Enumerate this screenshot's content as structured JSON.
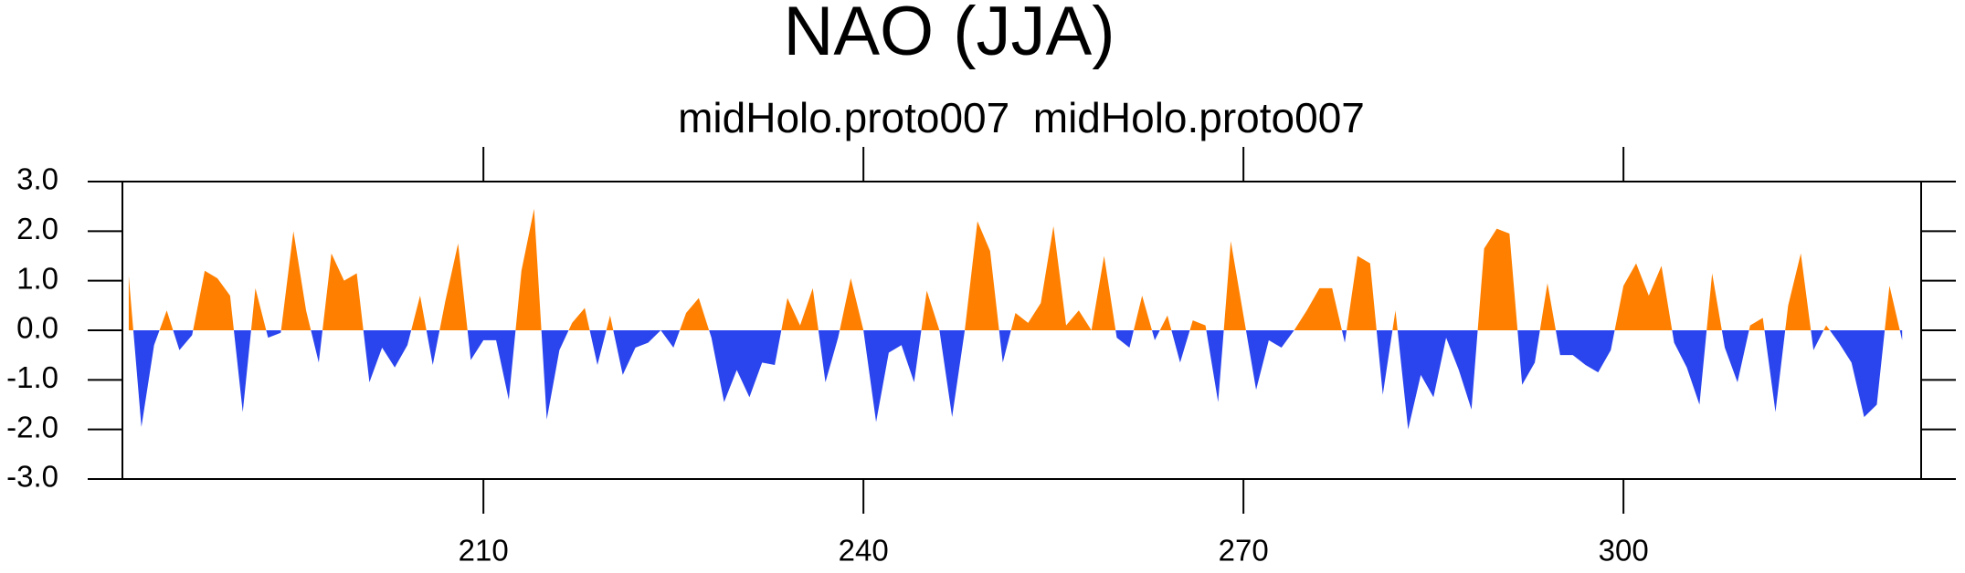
{
  "chart_data": {
    "type": "area",
    "title": "NAO (JJA)",
    "subtitle": "midHolo.proto007  midHolo.proto007",
    "x": [
      182,
      183,
      184,
      185,
      186,
      187,
      188,
      189,
      190,
      191,
      192,
      193,
      194,
      195,
      196,
      197,
      198,
      199,
      200,
      201,
      202,
      203,
      204,
      205,
      206,
      207,
      208,
      209,
      210,
      211,
      212,
      213,
      214,
      215,
      216,
      217,
      218,
      219,
      220,
      221,
      222,
      223,
      224,
      225,
      226,
      227,
      228,
      229,
      230,
      231,
      232,
      233,
      234,
      235,
      236,
      237,
      238,
      239,
      240,
      241,
      242,
      243,
      244,
      245,
      246,
      247,
      248,
      249,
      250,
      251,
      252,
      253,
      254,
      255,
      256,
      257,
      258,
      259,
      260,
      261,
      262,
      263,
      264,
      265,
      266,
      267,
      268,
      269,
      270,
      271,
      272,
      273,
      274,
      275,
      276,
      277,
      278,
      279,
      280,
      281,
      282,
      283,
      284,
      285,
      286,
      287,
      288,
      289,
      290,
      291,
      292,
      293,
      294,
      295,
      296,
      297,
      298,
      299,
      300,
      301,
      302,
      303,
      304,
      305,
      306,
      307,
      308,
      309,
      310,
      311,
      312,
      313,
      314,
      315,
      316,
      317,
      318,
      319,
      320,
      321,
      322
    ],
    "values": [
      1.1,
      -1.95,
      -0.3,
      0.4,
      -0.4,
      -0.1,
      1.2,
      1.05,
      0.7,
      -1.65,
      0.85,
      -0.15,
      -0.05,
      2.0,
      0.4,
      -0.65,
      1.55,
      1.0,
      1.15,
      -1.05,
      -0.35,
      -0.75,
      -0.3,
      0.7,
      -0.7,
      0.6,
      1.75,
      -0.6,
      -0.2,
      -0.2,
      -1.4,
      1.2,
      2.45,
      -1.8,
      -0.4,
      0.15,
      0.45,
      -0.7,
      0.3,
      -0.9,
      -0.35,
      -0.25,
      0.0,
      -0.35,
      0.35,
      0.65,
      -0.15,
      -1.45,
      -0.8,
      -1.35,
      -0.65,
      -0.7,
      0.65,
      0.1,
      0.85,
      -1.05,
      -0.15,
      1.05,
      0.0,
      -1.85,
      -0.45,
      -0.3,
      -1.05,
      0.8,
      0.0,
      -1.75,
      0.0,
      2.2,
      1.6,
      -0.65,
      0.35,
      0.15,
      0.55,
      2.1,
      0.1,
      0.4,
      0.0,
      1.5,
      -0.15,
      -0.35,
      0.7,
      -0.2,
      0.3,
      -0.65,
      0.2,
      0.1,
      -1.45,
      1.8,
      0.3,
      -1.2,
      -0.2,
      -0.35,
      0.0,
      0.4,
      0.85,
      0.85,
      -0.25,
      1.5,
      1.35,
      -1.3,
      0.4,
      -2.0,
      -0.9,
      -1.35,
      -0.15,
      -0.8,
      -1.6,
      1.65,
      2.05,
      1.95,
      -1.1,
      -0.65,
      0.95,
      -0.5,
      -0.5,
      -0.7,
      -0.85,
      -0.4,
      0.9,
      1.35,
      0.7,
      1.3,
      -0.25,
      -0.75,
      -1.5,
      1.15,
      -0.35,
      -1.05,
      0.1,
      0.25,
      -1.65,
      0.5,
      1.55,
      -0.4,
      0.1,
      -0.25,
      -0.65,
      -1.75,
      -1.5,
      0.9,
      -0.2
    ],
    "positive_color": "#ff8000",
    "negative_color": "#2a44ee",
    "xlim": [
      181.5,
      323.5
    ],
    "ylim": [
      -3,
      3
    ],
    "xticks": [
      210,
      240,
      270,
      300
    ],
    "yticks": [
      {
        "value": 3,
        "label": "3.0"
      },
      {
        "value": 2,
        "label": "2.0"
      },
      {
        "value": 1,
        "label": "1.0"
      },
      {
        "value": 0,
        "label": "0.0"
      },
      {
        "value": -1,
        "label": "-1.0"
      },
      {
        "value": -2,
        "label": "-2.0"
      },
      {
        "value": -3,
        "label": "-3.0"
      }
    ]
  }
}
